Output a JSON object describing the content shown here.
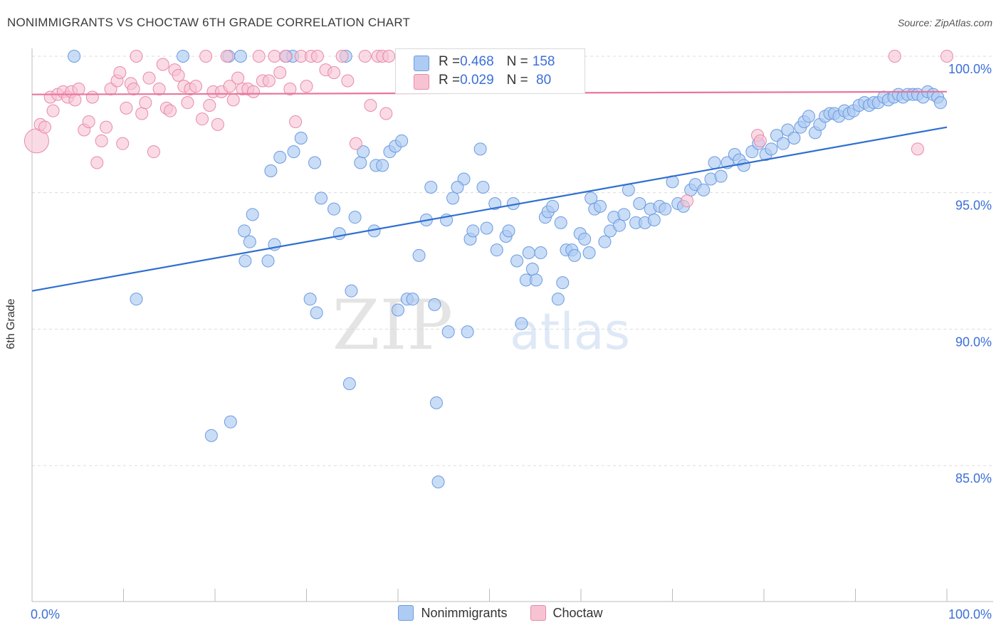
{
  "title": "NONIMMIGRANTS VS CHOCTAW 6TH GRADE CORRELATION CHART",
  "source": "Source: ZipAtlas.com",
  "watermark_zip": "ZIP",
  "watermark_atlas": "atlas",
  "colors": {
    "blue_fill": "#aecbf3",
    "blue_stroke": "#6a9be0",
    "blue_line": "#2f6fd0",
    "pink_fill": "#f7c3d3",
    "pink_stroke": "#e98aa8",
    "pink_line": "#e8769b",
    "axis_label": "#3b6fd8"
  },
  "stats": {
    "blue": {
      "r_label": "R = ",
      "r_value": "0.468",
      "n_label": "N = ",
      "n_value": "158"
    },
    "pink": {
      "r_label": "R = ",
      "r_value": "0.029",
      "n_label": "N = ",
      "n_value": " 80"
    }
  },
  "legend": {
    "blue": "Nonimmigrants",
    "pink": "Choctaw"
  },
  "chart_data": {
    "type": "scatter",
    "title": "NONIMMIGRANTS VS CHOCTAW 6TH GRADE CORRELATION CHART",
    "xlabel": "",
    "ylabel": "6th Grade",
    "xlim": [
      0,
      100
    ],
    "ylim": [
      80.5,
      101
    ],
    "x_tick_labels": [
      "0.0%",
      "100.0%"
    ],
    "y_ticks": [
      85,
      90,
      95,
      100
    ],
    "y_tick_labels": [
      "85.0%",
      "90.0%",
      "95.0%",
      "100.0%"
    ],
    "grid": true,
    "series": [
      {
        "name": "Nonimmigrants",
        "color": "#aecbf3",
        "trend": {
          "x": [
            0,
            100
          ],
          "y": [
            91.4,
            97.4
          ]
        },
        "points": [
          [
            4.6,
            100
          ],
          [
            16.5,
            100
          ],
          [
            21.5,
            100
          ],
          [
            22.8,
            100
          ],
          [
            27.8,
            100
          ],
          [
            28.5,
            100
          ],
          [
            34.3,
            100
          ],
          [
            11.4,
            91.1
          ],
          [
            19.6,
            86.1
          ],
          [
            21.7,
            86.6
          ],
          [
            23.2,
            93.6
          ],
          [
            24.1,
            94.2
          ],
          [
            23.8,
            93.2
          ],
          [
            23.3,
            92.5
          ],
          [
            25.8,
            92.5
          ],
          [
            26.5,
            93.1
          ],
          [
            26.1,
            95.8
          ],
          [
            27.1,
            96.3
          ],
          [
            28.6,
            96.5
          ],
          [
            29.4,
            97.0
          ],
          [
            30.4,
            91.1
          ],
          [
            31.1,
            90.6
          ],
          [
            30.9,
            96.1
          ],
          [
            31.6,
            94.8
          ],
          [
            33.0,
            94.4
          ],
          [
            33.6,
            93.5
          ],
          [
            34.9,
            91.4
          ],
          [
            34.7,
            88.0
          ],
          [
            35.3,
            94.1
          ],
          [
            35.9,
            96.1
          ],
          [
            36.2,
            96.5
          ],
          [
            37.4,
            93.6
          ],
          [
            37.6,
            96.0
          ],
          [
            38.3,
            96.0
          ],
          [
            39.1,
            96.5
          ],
          [
            39.7,
            96.7
          ],
          [
            40.4,
            96.9
          ],
          [
            40.0,
            90.7
          ],
          [
            41.0,
            91.1
          ],
          [
            41.6,
            91.1
          ],
          [
            42.3,
            92.7
          ],
          [
            43.1,
            94.0
          ],
          [
            43.6,
            95.2
          ],
          [
            44.0,
            90.9
          ],
          [
            44.2,
            87.3
          ],
          [
            44.4,
            84.4
          ],
          [
            45.3,
            94.0
          ],
          [
            45.5,
            89.9
          ],
          [
            46.0,
            94.8
          ],
          [
            47.2,
            95.5
          ],
          [
            46.5,
            95.2
          ],
          [
            47.6,
            89.9
          ],
          [
            47.9,
            93.3
          ],
          [
            48.2,
            93.6
          ],
          [
            49.0,
            96.6
          ],
          [
            49.3,
            95.2
          ],
          [
            49.7,
            93.7
          ],
          [
            50.6,
            94.6
          ],
          [
            50.8,
            92.9
          ],
          [
            51.8,
            93.4
          ],
          [
            52.1,
            93.6
          ],
          [
            52.6,
            94.6
          ],
          [
            53.0,
            92.5
          ],
          [
            53.5,
            90.2
          ],
          [
            54.0,
            91.8
          ],
          [
            54.3,
            92.8
          ],
          [
            54.7,
            92.2
          ],
          [
            55.1,
            91.8
          ],
          [
            55.6,
            92.8
          ],
          [
            56.1,
            94.1
          ],
          [
            56.4,
            94.3
          ],
          [
            56.9,
            94.5
          ],
          [
            57.5,
            91.1
          ],
          [
            58.0,
            91.7
          ],
          [
            57.8,
            93.9
          ],
          [
            58.4,
            92.9
          ],
          [
            59.0,
            92.9
          ],
          [
            59.3,
            92.7
          ],
          [
            59.9,
            93.5
          ],
          [
            60.4,
            93.3
          ],
          [
            60.9,
            92.8
          ],
          [
            61.1,
            94.8
          ],
          [
            61.5,
            94.4
          ],
          [
            62.1,
            94.5
          ],
          [
            62.6,
            93.2
          ],
          [
            63.2,
            93.6
          ],
          [
            63.6,
            94.1
          ],
          [
            64.2,
            93.8
          ],
          [
            64.7,
            94.2
          ],
          [
            65.2,
            95.1
          ],
          [
            66.0,
            93.9
          ],
          [
            66.4,
            94.6
          ],
          [
            67.0,
            93.9
          ],
          [
            67.6,
            94.4
          ],
          [
            68.0,
            94.0
          ],
          [
            68.6,
            94.5
          ],
          [
            69.2,
            94.4
          ],
          [
            70.0,
            95.4
          ],
          [
            70.6,
            94.6
          ],
          [
            71.2,
            94.5
          ],
          [
            72.0,
            95.1
          ],
          [
            72.5,
            95.3
          ],
          [
            73.4,
            95.1
          ],
          [
            74.2,
            95.5
          ],
          [
            74.6,
            96.1
          ],
          [
            75.3,
            95.6
          ],
          [
            76.0,
            96.1
          ],
          [
            76.8,
            96.4
          ],
          [
            77.3,
            96.2
          ],
          [
            77.8,
            96.0
          ],
          [
            78.7,
            96.5
          ],
          [
            79.4,
            96.8
          ],
          [
            80.2,
            96.4
          ],
          [
            80.8,
            96.6
          ],
          [
            81.4,
            97.1
          ],
          [
            82.1,
            96.8
          ],
          [
            82.6,
            97.3
          ],
          [
            83.3,
            97.0
          ],
          [
            84.0,
            97.4
          ],
          [
            84.4,
            97.6
          ],
          [
            84.9,
            97.8
          ],
          [
            85.6,
            97.2
          ],
          [
            86.1,
            97.5
          ],
          [
            86.7,
            97.8
          ],
          [
            87.2,
            97.9
          ],
          [
            87.7,
            97.9
          ],
          [
            88.2,
            97.8
          ],
          [
            88.8,
            98.0
          ],
          [
            89.3,
            97.9
          ],
          [
            89.8,
            98.0
          ],
          [
            90.4,
            98.2
          ],
          [
            91.0,
            98.3
          ],
          [
            91.5,
            98.2
          ],
          [
            92.0,
            98.3
          ],
          [
            92.5,
            98.3
          ],
          [
            93.1,
            98.5
          ],
          [
            93.6,
            98.4
          ],
          [
            94.2,
            98.5
          ],
          [
            94.7,
            98.6
          ],
          [
            95.2,
            98.5
          ],
          [
            95.7,
            98.6
          ],
          [
            96.3,
            98.6
          ],
          [
            96.8,
            98.6
          ],
          [
            97.4,
            98.5
          ],
          [
            97.9,
            98.7
          ],
          [
            98.5,
            98.6
          ],
          [
            99.0,
            98.5
          ],
          [
            99.3,
            98.3
          ]
        ]
      },
      {
        "name": "Choctaw",
        "color": "#f7c3d3",
        "trend": {
          "x": [
            0,
            100
          ],
          "y": [
            98.6,
            98.7
          ]
        },
        "points": [
          [
            0.5,
            96.9
          ],
          [
            0.9,
            97.5
          ],
          [
            1.4,
            97.4
          ],
          [
            2.0,
            98.5
          ],
          [
            2.3,
            98.0
          ],
          [
            2.8,
            98.6
          ],
          [
            3.4,
            98.7
          ],
          [
            3.9,
            98.5
          ],
          [
            4.3,
            98.7
          ],
          [
            4.7,
            98.4
          ],
          [
            5.1,
            98.8
          ],
          [
            5.7,
            97.3
          ],
          [
            6.2,
            97.6
          ],
          [
            6.6,
            98.5
          ],
          [
            7.1,
            96.1
          ],
          [
            7.6,
            96.9
          ],
          [
            8.1,
            97.4
          ],
          [
            8.6,
            98.8
          ],
          [
            9.3,
            99.1
          ],
          [
            9.6,
            99.4
          ],
          [
            9.9,
            96.8
          ],
          [
            10.3,
            98.1
          ],
          [
            10.8,
            99.0
          ],
          [
            11.1,
            98.8
          ],
          [
            11.4,
            100
          ],
          [
            12.0,
            97.9
          ],
          [
            12.4,
            98.3
          ],
          [
            12.8,
            99.2
          ],
          [
            13.3,
            96.5
          ],
          [
            13.9,
            98.8
          ],
          [
            14.3,
            99.7
          ],
          [
            14.7,
            98.1
          ],
          [
            15.1,
            98.0
          ],
          [
            15.6,
            99.5
          ],
          [
            16.0,
            99.3
          ],
          [
            16.6,
            98.9
          ],
          [
            17.0,
            98.3
          ],
          [
            17.3,
            98.8
          ],
          [
            17.9,
            98.9
          ],
          [
            18.6,
            97.7
          ],
          [
            19.0,
            100
          ],
          [
            19.4,
            98.2
          ],
          [
            19.8,
            98.7
          ],
          [
            20.3,
            97.5
          ],
          [
            20.7,
            98.7
          ],
          [
            21.3,
            100
          ],
          [
            21.6,
            98.9
          ],
          [
            22.0,
            98.4
          ],
          [
            22.5,
            99.2
          ],
          [
            23.0,
            98.8
          ],
          [
            23.6,
            98.8
          ],
          [
            24.2,
            98.7
          ],
          [
            24.8,
            100
          ],
          [
            25.2,
            99.1
          ],
          [
            25.9,
            99.1
          ],
          [
            26.5,
            100
          ],
          [
            27.1,
            99.4
          ],
          [
            27.7,
            100
          ],
          [
            28.2,
            98.8
          ],
          [
            28.8,
            97.6
          ],
          [
            29.4,
            100
          ],
          [
            30.0,
            98.9
          ],
          [
            30.5,
            100
          ],
          [
            31.2,
            100
          ],
          [
            32.1,
            99.5
          ],
          [
            33.0,
            99.4
          ],
          [
            33.9,
            100
          ],
          [
            34.5,
            99.1
          ],
          [
            35.4,
            96.8
          ],
          [
            36.4,
            100
          ],
          [
            37.0,
            98.2
          ],
          [
            37.8,
            100
          ],
          [
            38.3,
            100
          ],
          [
            38.7,
            97.9
          ],
          [
            39.0,
            100
          ],
          [
            71.6,
            94.7
          ],
          [
            79.3,
            97.1
          ],
          [
            79.6,
            96.9
          ],
          [
            94.3,
            100
          ],
          [
            96.8,
            96.6
          ],
          [
            100.0,
            100
          ]
        ]
      }
    ]
  }
}
